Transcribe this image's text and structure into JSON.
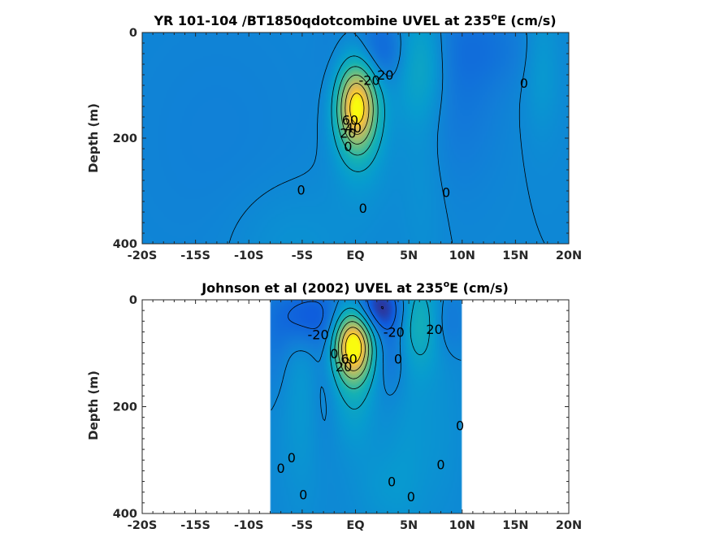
{
  "chart_data": [
    {
      "type": "heatmap",
      "id": "model",
      "title": "YR 101-104 /BT1850qdotcombine UVEL at 235",
      "title_sup": "o",
      "title_tail": "E (cm/s)",
      "ylabel": "Depth (m)",
      "xlim": [
        -20,
        20
      ],
      "ylim": [
        0,
        400
      ],
      "y_reversed": true,
      "xticks": [
        -20,
        -15,
        -10,
        -5,
        0,
        5,
        10,
        15,
        20
      ],
      "xtick_labels": [
        "-20S",
        "-15S",
        "-10S",
        "-5S",
        "EQ",
        "5N",
        "10N",
        "15N",
        "20N"
      ],
      "yticks": [
        0,
        200,
        400
      ],
      "ytick_labels": [
        "0",
        "200",
        "400"
      ],
      "data_x_range": [
        -20,
        20
      ],
      "colormap": "parula",
      "contour_labels": [
        {
          "text": "-20",
          "x": 1.3,
          "y": 90
        },
        {
          "text": "20",
          "x": 2.8,
          "y": 80
        },
        {
          "text": "0",
          "x": 15.8,
          "y": 95
        },
        {
          "text": "60",
          "x": -0.5,
          "y": 165
        },
        {
          "text": "40",
          "x": -0.2,
          "y": 180
        },
        {
          "text": "20",
          "x": -0.7,
          "y": 190
        },
        {
          "text": "0",
          "x": -0.7,
          "y": 215
        },
        {
          "text": "0",
          "x": -5.1,
          "y": 298
        },
        {
          "text": "0",
          "x": 0.7,
          "y": 332
        },
        {
          "text": "0",
          "x": 8.5,
          "y": 302
        }
      ],
      "features": [
        {
          "cx": 0.1,
          "cy": 140,
          "sx": 1.35,
          "sy": 58,
          "amp": 110
        },
        {
          "cx": 0.5,
          "cy": 230,
          "sx": 2.0,
          "sy": 80,
          "amp": 10
        },
        {
          "cx": 2.5,
          "cy": 35,
          "sx": 1.7,
          "sy": 45,
          "amp": -22
        },
        {
          "cx": 6.0,
          "cy": 55,
          "sx": 1.8,
          "sy": 75,
          "amp": 24
        },
        {
          "cx": 6.3,
          "cy": 230,
          "sx": 1.5,
          "sy": 160,
          "amp": 7
        },
        {
          "cx": 9.5,
          "cy": 90,
          "sx": 2.8,
          "sy": 130,
          "amp": -12
        },
        {
          "cx": 12.5,
          "cy": 30,
          "sx": 3.5,
          "sy": 50,
          "amp": -8
        },
        {
          "cx": 17.5,
          "cy": 60,
          "sx": 1.2,
          "sy": 90,
          "amp": 12
        },
        {
          "cx": -13.0,
          "cy": 200,
          "sx": 7.0,
          "sy": 200,
          "amp": -4
        },
        {
          "cx": -6.0,
          "cy": 400,
          "sx": 4.0,
          "sy": 80,
          "amp": 7
        },
        {
          "cx": -2.0,
          "cy": 100,
          "sx": 1.2,
          "sy": 90,
          "amp": -6
        }
      ]
    },
    {
      "type": "heatmap",
      "id": "observed",
      "title": "Johnson et al (2002) UVEL at 235",
      "title_sup": "o",
      "title_tail": "E (cm/s)",
      "ylabel": "Depth (m)",
      "xlim": [
        -20,
        20
      ],
      "ylim": [
        0,
        400
      ],
      "y_reversed": true,
      "xticks": [
        -20,
        -15,
        -10,
        -5,
        0,
        5,
        10,
        15,
        20
      ],
      "xtick_labels": [
        "-20S",
        "-15S",
        "-10S",
        "-5S",
        "EQ",
        "5N",
        "10N",
        "15N",
        "20N"
      ],
      "yticks": [
        0,
        200,
        400
      ],
      "ytick_labels": [
        "0",
        "200",
        "400"
      ],
      "data_x_range": [
        -8,
        10
      ],
      "colormap": "parula",
      "contour_labels": [
        {
          "text": "-20",
          "x": -3.5,
          "y": 65
        },
        {
          "text": "-20",
          "x": 3.6,
          "y": 60
        },
        {
          "text": "20",
          "x": 7.4,
          "y": 55
        },
        {
          "text": "0",
          "x": -2.0,
          "y": 100
        },
        {
          "text": "60",
          "x": -0.6,
          "y": 110
        },
        {
          "text": "20",
          "x": -1.1,
          "y": 125
        },
        {
          "text": "0",
          "x": 4.0,
          "y": 110
        },
        {
          "text": "0",
          "x": 9.8,
          "y": 235
        },
        {
          "text": "0",
          "x": -6.0,
          "y": 295
        },
        {
          "text": "0",
          "x": -7.0,
          "y": 315
        },
        {
          "text": "0",
          "x": 8.0,
          "y": 308
        },
        {
          "text": "0",
          "x": 3.4,
          "y": 340
        },
        {
          "text": "0",
          "x": 5.2,
          "y": 368
        },
        {
          "text": "0",
          "x": -4.9,
          "y": 364
        }
      ],
      "features": [
        {
          "cx": -0.2,
          "cy": 85,
          "sx": 1.25,
          "sy": 45,
          "amp": 115
        },
        {
          "cx": -0.1,
          "cy": 175,
          "sx": 1.4,
          "sy": 70,
          "amp": 18
        },
        {
          "cx": -4.6,
          "cy": 30,
          "sx": 2.2,
          "sy": 40,
          "amp": -30
        },
        {
          "cx": 2.2,
          "cy": 15,
          "sx": 1.6,
          "sy": 32,
          "amp": -42
        },
        {
          "cx": 3.5,
          "cy": 90,
          "sx": 1.2,
          "sy": 60,
          "amp": -18
        },
        {
          "cx": 6.0,
          "cy": 40,
          "sx": 1.6,
          "sy": 60,
          "amp": 28
        },
        {
          "cx": 8.5,
          "cy": 40,
          "sx": 1.2,
          "sy": 45,
          "amp": -14
        },
        {
          "cx": -5.0,
          "cy": 180,
          "sx": 1.5,
          "sy": 150,
          "amp": 10
        },
        {
          "cx": 5.0,
          "cy": 200,
          "sx": 1.5,
          "sy": 180,
          "amp": 8
        },
        {
          "cx": -3.0,
          "cy": 150,
          "sx": 0.9,
          "sy": 90,
          "amp": -8
        },
        {
          "cx": 2.5,
          "cy": 350,
          "sx": 2.0,
          "sy": 60,
          "amp": 8
        },
        {
          "cx": 8.0,
          "cy": 250,
          "sx": 1.5,
          "sy": 120,
          "amp": 5
        },
        {
          "cx": -7.5,
          "cy": 100,
          "sx": 1.0,
          "sy": 60,
          "amp": -8
        }
      ]
    }
  ]
}
